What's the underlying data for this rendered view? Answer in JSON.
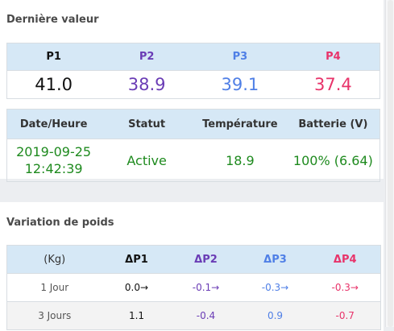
{
  "latest": {
    "title": "Dernière valeur",
    "weights": {
      "headers": [
        "P1",
        "P2",
        "P3",
        "P4"
      ],
      "values": [
        "41.0",
        "38.9",
        "39.1",
        "37.4"
      ]
    },
    "status": {
      "headers": [
        "Date/Heure",
        "Statut",
        "Température",
        "Batterie (V)"
      ],
      "date": "2019-09-25",
      "time": "12:42:39",
      "statut": "Active",
      "temperature": "18.9",
      "batterie": "100% (6.64)"
    }
  },
  "variation": {
    "title": "Variation de poids",
    "headers": [
      "(Kg)",
      "ΔP1",
      "ΔP2",
      "ΔP3",
      "ΔP4"
    ],
    "rows": [
      {
        "label": "1 Jour",
        "values": [
          "0.0→",
          "-0.1→",
          "-0.3→",
          "-0.3→"
        ]
      },
      {
        "label": "3 Jours",
        "values": [
          "1.1",
          "-0.4",
          "0.9",
          "-0.7"
        ]
      }
    ]
  },
  "colors": {
    "p1": "#111111",
    "p2": "#6a3cb5",
    "p3": "#4f7fe6",
    "p4": "#e8336a",
    "status_green": "#1e8a1e",
    "header_bg": "#d6e8f6"
  }
}
